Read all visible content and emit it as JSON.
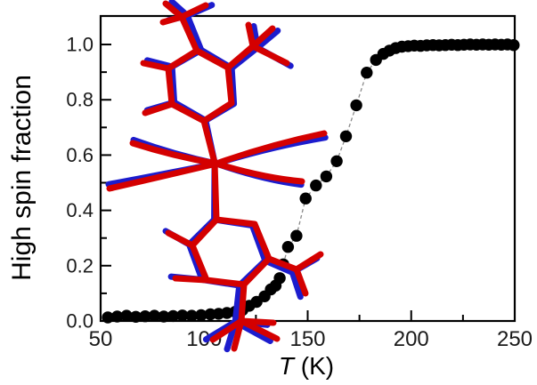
{
  "chart_data": {
    "type": "scatter",
    "title": "",
    "xlabel_italic": "T",
    "xlabel_rest": " (K)",
    "ylabel": "High spin fraction",
    "xlim": [
      50,
      250
    ],
    "ylim": [
      0,
      1.103
    ],
    "grid": false,
    "legend": "none",
    "x_major_ticks": [
      50,
      100,
      150,
      200,
      250
    ],
    "x_minor_ticks": [
      75,
      125,
      175,
      225
    ],
    "x_tick_labels": [
      "50",
      "100",
      "150",
      "200",
      "250"
    ],
    "y_major_ticks": [
      0.0,
      0.2,
      0.4,
      0.6,
      0.8,
      1.0
    ],
    "y_minor_ticks": [
      0.1,
      0.3,
      0.5,
      0.7,
      0.9
    ],
    "y_tick_labels": [
      "0.0",
      "0.2",
      "0.4",
      "0.6",
      "0.8",
      "1.0"
    ],
    "series": [
      {
        "name": "high-spin-fraction-vs-temperature",
        "marker": "filled-circle",
        "marker_color": "#000000",
        "connector": "dashed",
        "connector_color": "#8a8a8a",
        "points": [
          [
            53.5,
            0.013
          ],
          [
            58,
            0.016
          ],
          [
            62.5,
            0.019
          ],
          [
            67,
            0.015
          ],
          [
            71.5,
            0.017
          ],
          [
            76,
            0.019
          ],
          [
            80.5,
            0.016
          ],
          [
            85,
            0.018
          ],
          [
            89.5,
            0.02
          ],
          [
            94,
            0.019
          ],
          [
            98.5,
            0.021
          ],
          [
            103,
            0.024
          ],
          [
            107,
            0.026
          ],
          [
            111,
            0.029
          ],
          [
            115,
            0.033
          ],
          [
            118.5,
            0.04
          ],
          [
            121.8,
            0.055
          ],
          [
            125.3,
            0.069
          ],
          [
            129.2,
            0.089
          ],
          [
            132.2,
            0.114
          ],
          [
            134.5,
            0.128
          ],
          [
            136.5,
            0.155
          ],
          [
            138.2,
            0.205
          ],
          [
            140.5,
            0.268
          ],
          [
            144.6,
            0.308
          ],
          [
            149,
            0.443
          ],
          [
            154,
            0.49
          ],
          [
            159,
            0.523
          ],
          [
            164,
            0.578
          ],
          [
            168.5,
            0.668
          ],
          [
            173.5,
            0.78
          ],
          [
            178.5,
            0.898
          ],
          [
            183,
            0.944
          ],
          [
            186.5,
            0.966
          ],
          [
            189.5,
            0.978
          ],
          [
            192.5,
            0.987
          ],
          [
            195.5,
            0.992
          ],
          [
            198.5,
            0.994
          ],
          [
            201.5,
            0.996
          ],
          [
            204.5,
            0.995
          ],
          [
            207.5,
            0.997
          ],
          [
            210.5,
            0.998
          ],
          [
            213.5,
            0.997
          ],
          [
            216.5,
            0.998
          ],
          [
            219.5,
            0.999
          ],
          [
            222.5,
            0.998
          ],
          [
            225.5,
            0.999
          ],
          [
            228.5,
            1.0
          ],
          [
            231.5,
            0.999
          ],
          [
            234.5,
            1.0
          ],
          [
            237.5,
            0.999
          ],
          [
            240.5,
            1.0
          ],
          [
            243.5,
            0.999
          ],
          [
            246.5,
            1.0
          ],
          [
            249.5,
            0.998
          ]
        ]
      }
    ],
    "inset": {
      "description": "two overlaid stick molecular structures",
      "structure_colors": [
        "#d40000",
        "#1c1ccd"
      ]
    },
    "colors": {
      "molecule_red": "#d40000",
      "molecule_blue": "#1c1ccd",
      "marker": "#000000",
      "dash_line": "#8a8a8a",
      "axis": "#000000",
      "tick_label": "#1a1a1a",
      "background": "#ffffff"
    }
  }
}
